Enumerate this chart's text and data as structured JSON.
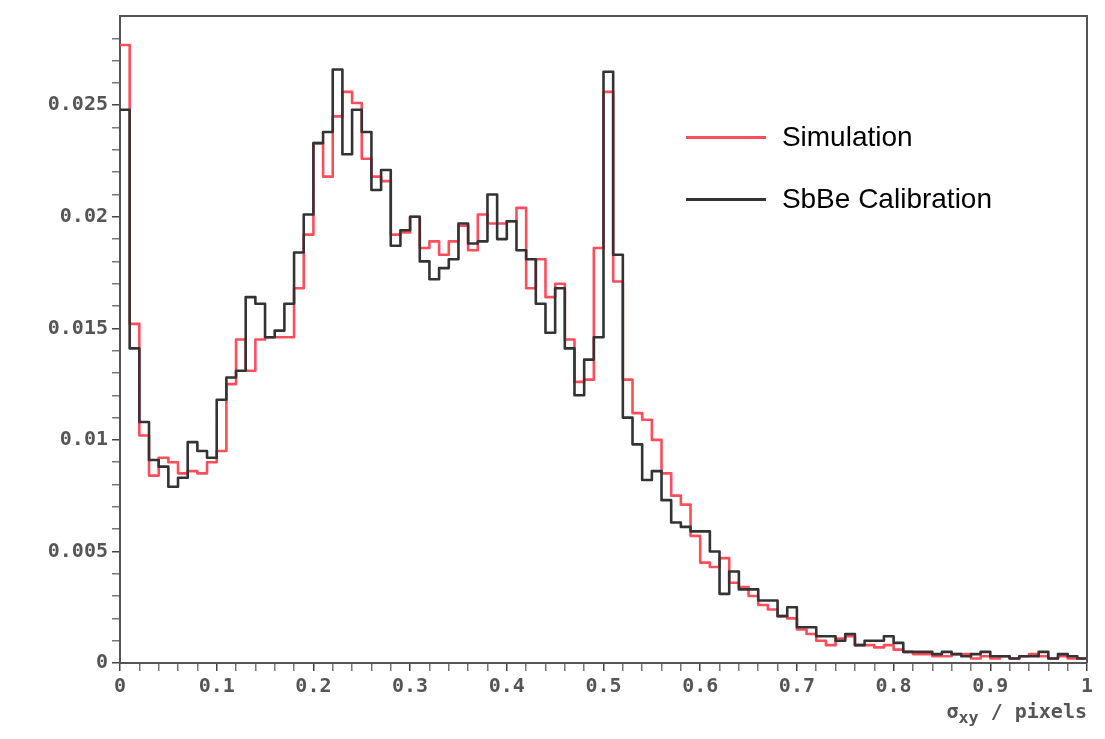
{
  "chart_data": {
    "type": "histogram",
    "xlabel": "σ$_{xy}$ / pixels",
    "legend": "top right",
    "grid": false,
    "bins": [
      0,
      0.01,
      0.02,
      0.03,
      0.04,
      0.05,
      0.06,
      0.07,
      0.08,
      0.09,
      0.1,
      0.11,
      0.12,
      0.13,
      0.14,
      0.15,
      0.16,
      0.17,
      0.18,
      0.19,
      0.2,
      0.21,
      0.22,
      0.23,
      0.24,
      0.25,
      0.26,
      0.27,
      0.28,
      0.29,
      0.3,
      0.31,
      0.32,
      0.33,
      0.34,
      0.35,
      0.36,
      0.37,
      0.38,
      0.39,
      0.4,
      0.41,
      0.42,
      0.43,
      0.44,
      0.45,
      0.46,
      0.47,
      0.48,
      0.49,
      0.5,
      0.51,
      0.52,
      0.53,
      0.54,
      0.55,
      0.56,
      0.57,
      0.58,
      0.59,
      0.6,
      0.61,
      0.62,
      0.63,
      0.64,
      0.65,
      0.66,
      0.67,
      0.68,
      0.69,
      0.7,
      0.71,
      0.72,
      0.73,
      0.74,
      0.75,
      0.76,
      0.77,
      0.78,
      0.79,
      0.8,
      0.81,
      0.82,
      0.83,
      0.84,
      0.85,
      0.86,
      0.87,
      0.88,
      0.89,
      0.9,
      0.91,
      0.92,
      0.93,
      0.94,
      0.95,
      0.96,
      0.97,
      0.98,
      0.99,
      1
    ],
    "series": [
      {
        "name": "Simulation",
        "color": "#ff4d5a",
        "values": [
          0.0277,
          0.0152,
          0.0102,
          0.0084,
          0.0092,
          0.009,
          0.0085,
          0.0086,
          0.0085,
          0.009,
          0.0095,
          0.0125,
          0.0145,
          0.0131,
          0.0145,
          0.0146,
          0.0146,
          0.0146,
          0.0168,
          0.0192,
          0.0233,
          0.0218,
          0.0245,
          0.0256,
          0.0251,
          0.0226,
          0.0218,
          0.0216,
          0.0192,
          0.0193,
          0.02,
          0.0186,
          0.0189,
          0.0183,
          0.0189,
          0.0196,
          0.0185,
          0.0201,
          0.0197,
          0.0197,
          0.0198,
          0.0204,
          0.0168,
          0.0181,
          0.0164,
          0.017,
          0.0145,
          0.0126,
          0.0127,
          0.0186,
          0.0256,
          0.0171,
          0.0127,
          0.0112,
          0.0109,
          0.01,
          0.0085,
          0.0075,
          0.0071,
          0.0057,
          0.0045,
          0.0043,
          0.0047,
          0.0036,
          0.0034,
          0.003,
          0.0026,
          0.0024,
          0.0021,
          0.002,
          0.0015,
          0.0013,
          0.001,
          0.0008,
          0.0011,
          0.0012,
          0.0008,
          0.0008,
          0.0007,
          0.0008,
          0.0006,
          0.0005,
          0.0004,
          0.0004,
          0.0003,
          0.0003,
          0.0004,
          0.0004,
          0.0002,
          0.0003,
          0.0002,
          0.0003,
          0.0002,
          0.0003,
          0.0004,
          0.0003,
          0.0002,
          0.0003,
          0.0002,
          0.0002
        ]
      },
      {
        "name": "SbBe Calibration",
        "color": "#333333",
        "values": [
          0.0248,
          0.0141,
          0.0108,
          0.0091,
          0.0088,
          0.0079,
          0.0083,
          0.0099,
          0.0095,
          0.0092,
          0.0118,
          0.0128,
          0.0131,
          0.0164,
          0.0161,
          0.0146,
          0.0149,
          0.0161,
          0.0184,
          0.0201,
          0.0233,
          0.0238,
          0.0266,
          0.0228,
          0.0248,
          0.0238,
          0.0212,
          0.0221,
          0.0187,
          0.0194,
          0.02,
          0.018,
          0.0172,
          0.0177,
          0.0181,
          0.0197,
          0.0188,
          0.0189,
          0.021,
          0.019,
          0.0198,
          0.0185,
          0.0181,
          0.0161,
          0.0148,
          0.0168,
          0.0141,
          0.012,
          0.0136,
          0.0146,
          0.0265,
          0.0183,
          0.011,
          0.0098,
          0.0082,
          0.0086,
          0.0073,
          0.0063,
          0.0061,
          0.0059,
          0.0059,
          0.005,
          0.0031,
          0.0041,
          0.0033,
          0.0033,
          0.0028,
          0.0028,
          0.0021,
          0.0025,
          0.0016,
          0.0016,
          0.0012,
          0.0012,
          0.001,
          0.0013,
          0.0008,
          0.001,
          0.001,
          0.0012,
          0.0009,
          0.0005,
          0.0005,
          0.0005,
          0.0004,
          0.0005,
          0.0004,
          0.0003,
          0.0004,
          0.0005,
          0.0003,
          0.0003,
          0.0002,
          0.0003,
          0.0003,
          0.0005,
          0.0002,
          0.0004,
          0.0003,
          0.0002
        ]
      }
    ],
    "xlim": [
      0,
      1
    ],
    "xticks": [
      0,
      {
        "value": 0.02,
        "label": null
      },
      {
        "value": 0.04,
        "label": null
      },
      {
        "value": 0.06,
        "label": null
      },
      {
        "value": 0.08,
        "label": null
      },
      0.1,
      {
        "value": 0.12,
        "label": null
      },
      {
        "value": 0.14,
        "label": null
      },
      {
        "value": 0.16,
        "label": null
      },
      {
        "value": 0.18,
        "label": null
      },
      0.2,
      {
        "value": 0.22,
        "label": null
      },
      {
        "value": 0.24,
        "label": null
      },
      {
        "value": 0.26,
        "label": null
      },
      {
        "value": 0.28,
        "label": null
      },
      0.3,
      {
        "value": 0.32,
        "label": null
      },
      {
        "value": 0.34,
        "label": null
      },
      {
        "value": 0.36,
        "label": null
      },
      {
        "value": 0.38,
        "label": null
      },
      0.4,
      {
        "value": 0.42,
        "label": null
      },
      {
        "value": 0.44,
        "label": null
      },
      {
        "value": 0.46,
        "label": null
      },
      {
        "value": 0.48,
        "label": null
      },
      0.5,
      {
        "value": 0.52,
        "label": null
      },
      {
        "value": 0.54,
        "label": null
      },
      {
        "value": 0.56,
        "label": null
      },
      {
        "value": 0.58,
        "label": null
      },
      0.6,
      {
        "value": 0.62,
        "label": null
      },
      {
        "value": 0.64,
        "label": null
      },
      {
        "value": 0.66,
        "label": null
      },
      {
        "value": 0.68,
        "label": null
      },
      0.7,
      {
        "value": 0.72,
        "label": null
      },
      {
        "value": 0.74,
        "label": null
      },
      {
        "value": 0.76,
        "label": null
      },
      {
        "value": 0.78,
        "label": null
      },
      0.8,
      {
        "value": 0.82,
        "label": null
      },
      {
        "value": 0.84,
        "label": null
      },
      {
        "value": 0.86,
        "label": null
      },
      {
        "value": 0.88,
        "label": null
      },
      0.9,
      {
        "value": 0.92,
        "label": null
      },
      {
        "value": 0.94,
        "label": null
      },
      {
        "value": 0.96,
        "label": null
      },
      {
        "value": 0.98,
        "label": null
      },
      1
    ],
    "ylim": [
      0,
      0.029
    ],
    "yticks": [
      0,
      {
        "value": 0.001,
        "label": null
      },
      {
        "value": 0.002,
        "label": null
      },
      {
        "value": 0.003,
        "label": null
      },
      {
        "value": 0.004,
        "label": null
      },
      0.005,
      {
        "value": 0.006,
        "label": null
      },
      {
        "value": 0.007,
        "label": null
      },
      {
        "value": 0.008,
        "label": null
      },
      {
        "value": 0.009,
        "label": null
      },
      0.01,
      {
        "value": 0.011,
        "label": null
      },
      {
        "value": 0.012,
        "label": null
      },
      {
        "value": 0.013,
        "label": null
      },
      {
        "value": 0.014,
        "label": null
      },
      0.015,
      {
        "value": 0.016,
        "label": null
      },
      {
        "value": 0.017,
        "label": null
      },
      {
        "value": 0.018,
        "label": null
      },
      {
        "value": 0.019,
        "label": null
      },
      0.02,
      {
        "value": 0.021,
        "label": null
      },
      {
        "value": 0.022,
        "label": null
      },
      {
        "value": 0.023,
        "label": null
      },
      {
        "value": 0.024,
        "label": null
      },
      0.025,
      {
        "value": 0.026,
        "label": null
      },
      {
        "value": 0.027,
        "label": null
      },
      {
        "value": 0.028,
        "label": null
      }
    ]
  }
}
